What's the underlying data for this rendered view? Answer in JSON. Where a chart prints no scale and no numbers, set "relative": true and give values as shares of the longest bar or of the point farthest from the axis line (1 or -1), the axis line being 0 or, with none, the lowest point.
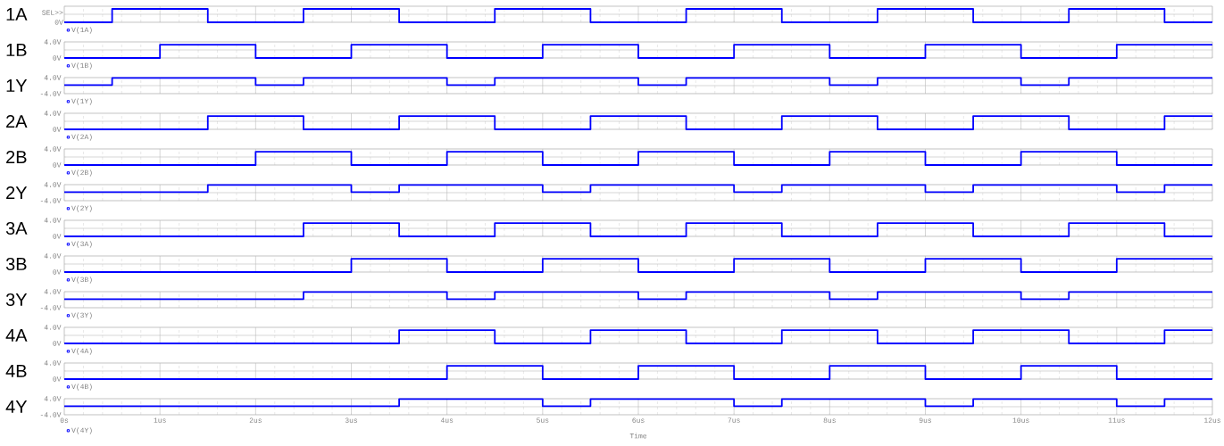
{
  "chart_data": [
    {
      "type": "step",
      "ylabel": "1A",
      "xlim": [
        0,
        12
      ],
      "xticks": [
        {
          "value": 0,
          "label": null
        },
        {
          "value": 1,
          "label": null
        },
        {
          "value": 2,
          "label": null
        },
        {
          "value": 3,
          "label": null
        },
        {
          "value": 4,
          "label": null
        },
        {
          "value": 5,
          "label": null
        },
        {
          "value": 6,
          "label": null
        },
        {
          "value": 7,
          "label": null
        },
        {
          "value": 8,
          "label": null
        },
        {
          "value": 9,
          "label": null
        },
        {
          "value": 10,
          "label": null
        },
        {
          "value": 11,
          "label": null
        },
        {
          "value": 12,
          "label": null
        }
      ],
      "relative": true,
      "annotations": [
        "SEL>>",
        "0V"
      ],
      "grid": true,
      "legend": "bottom left",
      "tick_labels": "y",
      "series": [
        {
          "name": "V(1A)",
          "color": "#0000ff",
          "x": [
            0,
            0.5,
            1.5,
            2.5,
            3.5,
            4.5,
            5.5,
            6.5,
            7.5,
            8.5,
            9.5,
            10.5,
            11.5,
            12
          ],
          "values": [
            0,
            1,
            0,
            1,
            0,
            1,
            0,
            1,
            0,
            1,
            0,
            1,
            0,
            0
          ]
        }
      ]
    },
    {
      "type": "step",
      "ylabel": "1B",
      "xlim": [
        0,
        12
      ],
      "xticks": [
        {
          "value": 0,
          "label": null
        },
        {
          "value": 1,
          "label": null
        },
        {
          "value": 2,
          "label": null
        },
        {
          "value": 3,
          "label": null
        },
        {
          "value": 4,
          "label": null
        },
        {
          "value": 5,
          "label": null
        },
        {
          "value": 6,
          "label": null
        },
        {
          "value": 7,
          "label": null
        },
        {
          "value": 8,
          "label": null
        },
        {
          "value": 9,
          "label": null
        },
        {
          "value": 10,
          "label": null
        },
        {
          "value": 11,
          "label": null
        },
        {
          "value": 12,
          "label": null
        }
      ],
      "ylim": [
        0,
        4
      ],
      "yticks": [
        {
          "value": 0,
          "label": "0V"
        },
        {
          "value": 2,
          "label": null
        },
        {
          "value": 4,
          "label": "4.0V"
        }
      ],
      "grid": true,
      "legend": "bottom left",
      "tick_labels": "y",
      "series": [
        {
          "name": "V(1B)",
          "color": "#0000ff",
          "x": [
            0,
            1,
            2,
            3,
            4,
            5,
            6,
            7,
            8,
            9,
            10,
            11,
            12
          ],
          "values": [
            0,
            3.3,
            0,
            3.3,
            0,
            3.3,
            0,
            3.3,
            0,
            3.3,
            0,
            3.3,
            3.3
          ]
        }
      ]
    },
    {
      "type": "step",
      "ylabel": "1Y",
      "xlim": [
        0,
        12
      ],
      "xticks": [
        {
          "value": 0,
          "label": null
        },
        {
          "value": 1,
          "label": null
        },
        {
          "value": 2,
          "label": null
        },
        {
          "value": 3,
          "label": null
        },
        {
          "value": 4,
          "label": null
        },
        {
          "value": 5,
          "label": null
        },
        {
          "value": 6,
          "label": null
        },
        {
          "value": 7,
          "label": null
        },
        {
          "value": 8,
          "label": null
        },
        {
          "value": 9,
          "label": null
        },
        {
          "value": 10,
          "label": null
        },
        {
          "value": 11,
          "label": null
        },
        {
          "value": 12,
          "label": null
        }
      ],
      "ylim": [
        -4,
        4
      ],
      "yticks": [
        {
          "value": -4,
          "label": "-4.0V"
        },
        {
          "value": 0,
          "label": null
        },
        {
          "value": 4,
          "label": "4.0V"
        }
      ],
      "grid": true,
      "legend": "bottom left",
      "tick_labels": "y",
      "series": [
        {
          "name": "V(1Y)",
          "color": "#0000ff",
          "x": [
            0,
            0.5,
            2,
            2.5,
            4,
            4.5,
            6,
            6.5,
            8,
            8.5,
            10,
            10.5,
            12
          ],
          "values": [
            0.3,
            3.8,
            0.3,
            3.8,
            0.3,
            3.8,
            0.3,
            3.8,
            0.3,
            3.8,
            0.3,
            3.8,
            3.8
          ]
        }
      ]
    },
    {
      "type": "step",
      "ylabel": "2A",
      "xlim": [
        0,
        12
      ],
      "xticks": [
        {
          "value": 0,
          "label": null
        },
        {
          "value": 1,
          "label": null
        },
        {
          "value": 2,
          "label": null
        },
        {
          "value": 3,
          "label": null
        },
        {
          "value": 4,
          "label": null
        },
        {
          "value": 5,
          "label": null
        },
        {
          "value": 6,
          "label": null
        },
        {
          "value": 7,
          "label": null
        },
        {
          "value": 8,
          "label": null
        },
        {
          "value": 9,
          "label": null
        },
        {
          "value": 10,
          "label": null
        },
        {
          "value": 11,
          "label": null
        },
        {
          "value": 12,
          "label": null
        }
      ],
      "ylim": [
        0,
        4
      ],
      "yticks": [
        {
          "value": 0,
          "label": "0V"
        },
        {
          "value": 2,
          "label": null
        },
        {
          "value": 4,
          "label": "4.0V"
        }
      ],
      "grid": true,
      "legend": "bottom left",
      "tick_labels": "y",
      "series": [
        {
          "name": "V(2A)",
          "color": "#0000ff",
          "x": [
            0,
            1.5,
            2.5,
            3.5,
            4.5,
            5.5,
            6.5,
            7.5,
            8.5,
            9.5,
            10.5,
            11.5,
            12
          ],
          "values": [
            0,
            3.3,
            0,
            3.3,
            0,
            3.3,
            0,
            3.3,
            0,
            3.3,
            0,
            3.3,
            3.3
          ]
        }
      ]
    },
    {
      "type": "step",
      "ylabel": "2B",
      "xlim": [
        0,
        12
      ],
      "xticks": [
        {
          "value": 0,
          "label": null
        },
        {
          "value": 1,
          "label": null
        },
        {
          "value": 2,
          "label": null
        },
        {
          "value": 3,
          "label": null
        },
        {
          "value": 4,
          "label": null
        },
        {
          "value": 5,
          "label": null
        },
        {
          "value": 6,
          "label": null
        },
        {
          "value": 7,
          "label": null
        },
        {
          "value": 8,
          "label": null
        },
        {
          "value": 9,
          "label": null
        },
        {
          "value": 10,
          "label": null
        },
        {
          "value": 11,
          "label": null
        },
        {
          "value": 12,
          "label": null
        }
      ],
      "ylim": [
        0,
        4
      ],
      "yticks": [
        {
          "value": 0,
          "label": "0V"
        },
        {
          "value": 2,
          "label": null
        },
        {
          "value": 4,
          "label": "4.0V"
        }
      ],
      "grid": true,
      "legend": "bottom left",
      "tick_labels": "y",
      "series": [
        {
          "name": "V(2B)",
          "color": "#0000ff",
          "x": [
            0,
            2,
            3,
            4,
            5,
            6,
            7,
            8,
            9,
            10,
            11,
            12
          ],
          "values": [
            0,
            3.3,
            0,
            3.3,
            0,
            3.3,
            0,
            3.3,
            0,
            3.3,
            0,
            0
          ]
        }
      ]
    },
    {
      "type": "step",
      "ylabel": "2Y",
      "xlim": [
        0,
        12
      ],
      "xticks": [
        {
          "value": 0,
          "label": null
        },
        {
          "value": 1,
          "label": null
        },
        {
          "value": 2,
          "label": null
        },
        {
          "value": 3,
          "label": null
        },
        {
          "value": 4,
          "label": null
        },
        {
          "value": 5,
          "label": null
        },
        {
          "value": 6,
          "label": null
        },
        {
          "value": 7,
          "label": null
        },
        {
          "value": 8,
          "label": null
        },
        {
          "value": 9,
          "label": null
        },
        {
          "value": 10,
          "label": null
        },
        {
          "value": 11,
          "label": null
        },
        {
          "value": 12,
          "label": null
        }
      ],
      "ylim": [
        -4,
        4
      ],
      "yticks": [
        {
          "value": -4,
          "label": "-4.0V"
        },
        {
          "value": 0,
          "label": null
        },
        {
          "value": 4,
          "label": "4.0V"
        }
      ],
      "grid": true,
      "legend": "bottom left",
      "tick_labels": "y",
      "series": [
        {
          "name": "V(2Y)",
          "color": "#0000ff",
          "x": [
            0,
            1.5,
            3,
            3.5,
            5,
            5.5,
            7,
            7.5,
            9,
            9.5,
            11,
            11.5,
            12
          ],
          "values": [
            0.3,
            3.8,
            0.3,
            3.8,
            0.3,
            3.8,
            0.3,
            3.8,
            0.3,
            3.8,
            0.3,
            3.8,
            3.8
          ]
        }
      ]
    },
    {
      "type": "step",
      "ylabel": "3A",
      "xlim": [
        0,
        12
      ],
      "xticks": [
        {
          "value": 0,
          "label": null
        },
        {
          "value": 1,
          "label": null
        },
        {
          "value": 2,
          "label": null
        },
        {
          "value": 3,
          "label": null
        },
        {
          "value": 4,
          "label": null
        },
        {
          "value": 5,
          "label": null
        },
        {
          "value": 6,
          "label": null
        },
        {
          "value": 7,
          "label": null
        },
        {
          "value": 8,
          "label": null
        },
        {
          "value": 9,
          "label": null
        },
        {
          "value": 10,
          "label": null
        },
        {
          "value": 11,
          "label": null
        },
        {
          "value": 12,
          "label": null
        }
      ],
      "ylim": [
        0,
        4
      ],
      "yticks": [
        {
          "value": 0,
          "label": "0V"
        },
        {
          "value": 2,
          "label": null
        },
        {
          "value": 4,
          "label": "4.0V"
        }
      ],
      "grid": true,
      "legend": "bottom left",
      "tick_labels": "y",
      "series": [
        {
          "name": "V(3A)",
          "color": "#0000ff",
          "x": [
            0,
            2.5,
            3.5,
            4.5,
            5.5,
            6.5,
            7.5,
            8.5,
            9.5,
            10.5,
            11.5,
            12
          ],
          "values": [
            0,
            3.3,
            0,
            3.3,
            0,
            3.3,
            0,
            3.3,
            0,
            3.3,
            0,
            0
          ]
        }
      ]
    },
    {
      "type": "step",
      "ylabel": "3B",
      "xlim": [
        0,
        12
      ],
      "xticks": [
        {
          "value": 0,
          "label": null
        },
        {
          "value": 1,
          "label": null
        },
        {
          "value": 2,
          "label": null
        },
        {
          "value": 3,
          "label": null
        },
        {
          "value": 4,
          "label": null
        },
        {
          "value": 5,
          "label": null
        },
        {
          "value": 6,
          "label": null
        },
        {
          "value": 7,
          "label": null
        },
        {
          "value": 8,
          "label": null
        },
        {
          "value": 9,
          "label": null
        },
        {
          "value": 10,
          "label": null
        },
        {
          "value": 11,
          "label": null
        },
        {
          "value": 12,
          "label": null
        }
      ],
      "ylim": [
        0,
        4
      ],
      "yticks": [
        {
          "value": 0,
          "label": "0V"
        },
        {
          "value": 2,
          "label": null
        },
        {
          "value": 4,
          "label": "4.0V"
        }
      ],
      "grid": true,
      "legend": "bottom left",
      "tick_labels": "y",
      "series": [
        {
          "name": "V(3B)",
          "color": "#0000ff",
          "x": [
            0,
            3,
            4,
            5,
            6,
            7,
            8,
            9,
            10,
            11,
            12
          ],
          "values": [
            0,
            3.3,
            0,
            3.3,
            0,
            3.3,
            0,
            3.3,
            0,
            3.3,
            3.3
          ]
        }
      ]
    },
    {
      "type": "step",
      "ylabel": "3Y",
      "xlim": [
        0,
        12
      ],
      "xticks": [
        {
          "value": 0,
          "label": null
        },
        {
          "value": 1,
          "label": null
        },
        {
          "value": 2,
          "label": null
        },
        {
          "value": 3,
          "label": null
        },
        {
          "value": 4,
          "label": null
        },
        {
          "value": 5,
          "label": null
        },
        {
          "value": 6,
          "label": null
        },
        {
          "value": 7,
          "label": null
        },
        {
          "value": 8,
          "label": null
        },
        {
          "value": 9,
          "label": null
        },
        {
          "value": 10,
          "label": null
        },
        {
          "value": 11,
          "label": null
        },
        {
          "value": 12,
          "label": null
        }
      ],
      "ylim": [
        -4,
        4
      ],
      "yticks": [
        {
          "value": -4,
          "label": "-4.0V"
        },
        {
          "value": 0,
          "label": null
        },
        {
          "value": 4,
          "label": "4.0V"
        }
      ],
      "grid": true,
      "legend": "bottom left",
      "tick_labels": "y",
      "series": [
        {
          "name": "V(3Y)",
          "color": "#0000ff",
          "x": [
            0,
            2.5,
            4,
            4.5,
            6,
            6.5,
            8,
            8.5,
            10,
            10.5,
            12
          ],
          "values": [
            0.3,
            3.8,
            0.3,
            3.8,
            0.3,
            3.8,
            0.3,
            3.8,
            0.3,
            3.8,
            3.8
          ]
        }
      ]
    },
    {
      "type": "step",
      "ylabel": "4A",
      "xlim": [
        0,
        12
      ],
      "xticks": [
        {
          "value": 0,
          "label": null
        },
        {
          "value": 1,
          "label": null
        },
        {
          "value": 2,
          "label": null
        },
        {
          "value": 3,
          "label": null
        },
        {
          "value": 4,
          "label": null
        },
        {
          "value": 5,
          "label": null
        },
        {
          "value": 6,
          "label": null
        },
        {
          "value": 7,
          "label": null
        },
        {
          "value": 8,
          "label": null
        },
        {
          "value": 9,
          "label": null
        },
        {
          "value": 10,
          "label": null
        },
        {
          "value": 11,
          "label": null
        },
        {
          "value": 12,
          "label": null
        }
      ],
      "ylim": [
        0,
        4
      ],
      "yticks": [
        {
          "value": 0,
          "label": "0V"
        },
        {
          "value": 2,
          "label": null
        },
        {
          "value": 4,
          "label": "4.0V"
        }
      ],
      "grid": true,
      "legend": "bottom left",
      "tick_labels": "y",
      "series": [
        {
          "name": "V(4A)",
          "color": "#0000ff",
          "x": [
            0,
            3.5,
            4.5,
            5.5,
            6.5,
            7.5,
            8.5,
            9.5,
            10.5,
            11.5,
            12
          ],
          "values": [
            0,
            3.3,
            0,
            3.3,
            0,
            3.3,
            0,
            3.3,
            0,
            3.3,
            3.3
          ]
        }
      ]
    },
    {
      "type": "step",
      "ylabel": "4B",
      "xlim": [
        0,
        12
      ],
      "xticks": [
        {
          "value": 0,
          "label": null
        },
        {
          "value": 1,
          "label": null
        },
        {
          "value": 2,
          "label": null
        },
        {
          "value": 3,
          "label": null
        },
        {
          "value": 4,
          "label": null
        },
        {
          "value": 5,
          "label": null
        },
        {
          "value": 6,
          "label": null
        },
        {
          "value": 7,
          "label": null
        },
        {
          "value": 8,
          "label": null
        },
        {
          "value": 9,
          "label": null
        },
        {
          "value": 10,
          "label": null
        },
        {
          "value": 11,
          "label": null
        },
        {
          "value": 12,
          "label": null
        }
      ],
      "ylim": [
        0,
        4
      ],
      "yticks": [
        {
          "value": 0,
          "label": "0V"
        },
        {
          "value": 2,
          "label": null
        },
        {
          "value": 4,
          "label": "4.0V"
        }
      ],
      "grid": true,
      "legend": "bottom left",
      "tick_labels": "y",
      "series": [
        {
          "name": "V(4B)",
          "color": "#0000ff",
          "x": [
            0,
            4,
            5,
            6,
            7,
            8,
            9,
            10,
            11,
            12
          ],
          "values": [
            0,
            3.3,
            0,
            3.3,
            0,
            3.3,
            0,
            3.3,
            0,
            0
          ]
        }
      ]
    },
    {
      "type": "step",
      "ylabel": "4Y",
      "xlabel": "Time",
      "xlim": [
        0,
        12
      ],
      "xticks": [
        {
          "value": 0,
          "label": "0s"
        },
        {
          "value": 1,
          "label": "1us"
        },
        {
          "value": 2,
          "label": "2us"
        },
        {
          "value": 3,
          "label": "3us"
        },
        {
          "value": 4,
          "label": "4us"
        },
        {
          "value": 5,
          "label": "5us"
        },
        {
          "value": 6,
          "label": "6us"
        },
        {
          "value": 7,
          "label": "7us"
        },
        {
          "value": 8,
          "label": "8us"
        },
        {
          "value": 9,
          "label": "9us"
        },
        {
          "value": 10,
          "label": "10us"
        },
        {
          "value": 11,
          "label": "11us"
        },
        {
          "value": 12,
          "label": "12us"
        }
      ],
      "ylim": [
        -4,
        4
      ],
      "yticks": [
        {
          "value": -4,
          "label": "-4.0V"
        },
        {
          "value": 0,
          "label": null
        },
        {
          "value": 4,
          "label": "4.0V"
        }
      ],
      "grid": true,
      "legend": "bottom left",
      "series": [
        {
          "name": "V(4Y)",
          "color": "#0000ff",
          "x": [
            0,
            3.5,
            5,
            5.5,
            7,
            7.5,
            9,
            9.5,
            11,
            11.5,
            12
          ],
          "values": [
            0.3,
            3.8,
            0.3,
            3.8,
            0.3,
            3.8,
            0.3,
            3.8,
            0.3,
            3.8,
            3.8
          ]
        }
      ]
    }
  ]
}
